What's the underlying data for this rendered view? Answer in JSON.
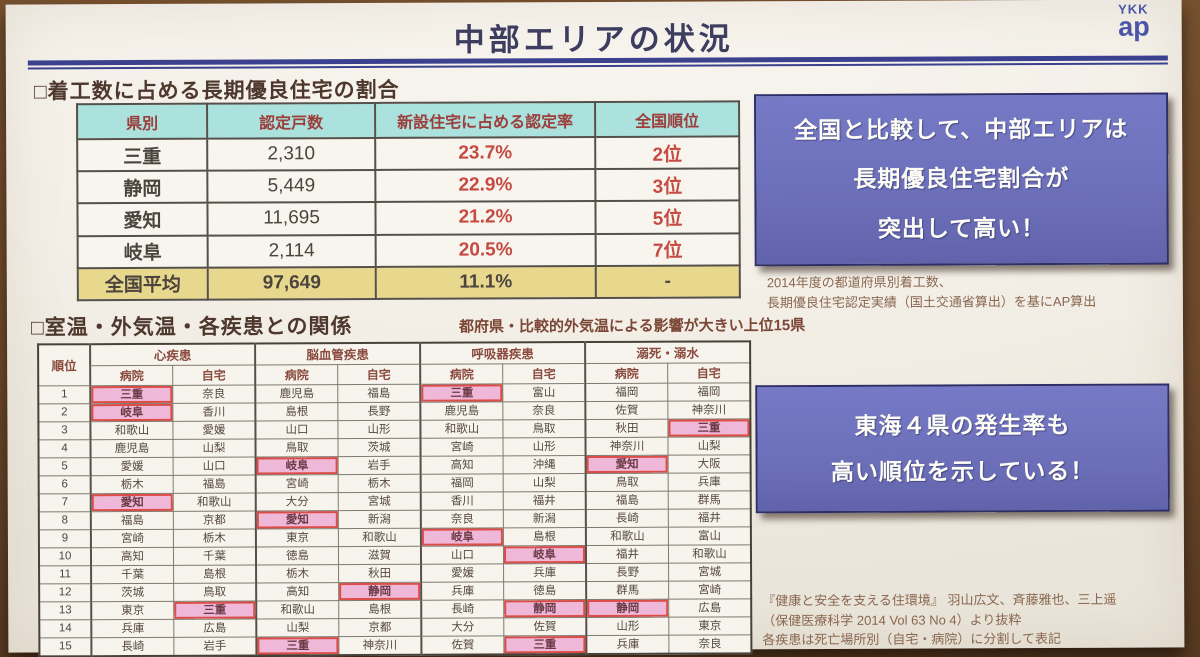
{
  "title": "中部エリアの状況",
  "logo": {
    "top": "YKK",
    "bottom": "ap"
  },
  "section1": {
    "heading": "□着工数に占める長期優良住宅の割合",
    "table": {
      "headers": [
        "県別",
        "認定戸数",
        "新設住宅に占める認定率",
        "全国順位"
      ],
      "rows": [
        {
          "pref": "三重",
          "units": "2,310",
          "rate": "23.7%",
          "rank": "2位",
          "total": false
        },
        {
          "pref": "静岡",
          "units": "5,449",
          "rate": "22.9%",
          "rank": "3位",
          "total": false
        },
        {
          "pref": "愛知",
          "units": "11,695",
          "rate": "21.2%",
          "rank": "5位",
          "total": false
        },
        {
          "pref": "岐阜",
          "units": "2,114",
          "rate": "20.5%",
          "rank": "7位",
          "total": false
        },
        {
          "pref": "全国平均",
          "units": "97,649",
          "rate": "11.1%",
          "rank": "-",
          "total": true
        }
      ]
    },
    "callout_lines": [
      "全国と比較して、中部エリアは",
      "長期優良住宅割合が",
      "突出して高い！"
    ],
    "footnote_lines": [
      "2014年度の都道府県別着工数、",
      "長期優良住宅認定実績（国土交通省算出）を基にAP算出"
    ]
  },
  "section2": {
    "heading": "□室温・外気温・各疾患との関係",
    "subtitle": "都府県・比較的外気温による影響が大きい上位15県",
    "table": {
      "rank_header": "順位",
      "groups": [
        "心疾患",
        "脳血管疾患",
        "呼吸器疾患",
        "溺死・溺水"
      ],
      "subheaders": [
        "病院",
        "自宅"
      ],
      "rows": [
        {
          "rank": "1",
          "cells": [
            "三重",
            "奈良",
            "鹿児島",
            "福島",
            "三重",
            "富山",
            "福岡",
            "福岡"
          ],
          "hl": [
            0,
            4
          ]
        },
        {
          "rank": "2",
          "cells": [
            "岐阜",
            "香川",
            "島根",
            "長野",
            "鹿児島",
            "奈良",
            "佐賀",
            "神奈川"
          ],
          "hl": [
            0
          ]
        },
        {
          "rank": "3",
          "cells": [
            "和歌山",
            "愛媛",
            "山口",
            "山形",
            "和歌山",
            "鳥取",
            "秋田",
            "三重"
          ],
          "hl": [
            7
          ]
        },
        {
          "rank": "4",
          "cells": [
            "鹿児島",
            "山梨",
            "鳥取",
            "茨城",
            "宮崎",
            "山形",
            "神奈川",
            "山梨"
          ],
          "hl": []
        },
        {
          "rank": "5",
          "cells": [
            "愛媛",
            "山口",
            "岐阜",
            "岩手",
            "高知",
            "沖縄",
            "愛知",
            "大阪"
          ],
          "hl": [
            2,
            6
          ]
        },
        {
          "rank": "6",
          "cells": [
            "栃木",
            "福島",
            "宮崎",
            "栃木",
            "福岡",
            "山梨",
            "鳥取",
            "兵庫"
          ],
          "hl": []
        },
        {
          "rank": "7",
          "cells": [
            "愛知",
            "和歌山",
            "大分",
            "宮城",
            "香川",
            "福井",
            "福島",
            "群馬"
          ],
          "hl": [
            0
          ]
        },
        {
          "rank": "8",
          "cells": [
            "福島",
            "京都",
            "愛知",
            "新潟",
            "奈良",
            "新潟",
            "長崎",
            "福井"
          ],
          "hl": [
            2
          ]
        },
        {
          "rank": "9",
          "cells": [
            "宮崎",
            "栃木",
            "東京",
            "和歌山",
            "岐阜",
            "島根",
            "和歌山",
            "富山"
          ],
          "hl": [
            4
          ]
        },
        {
          "rank": "10",
          "cells": [
            "高知",
            "千葉",
            "徳島",
            "滋賀",
            "山口",
            "岐阜",
            "福井",
            "和歌山"
          ],
          "hl": [
            5
          ]
        },
        {
          "rank": "11",
          "cells": [
            "千葉",
            "島根",
            "栃木",
            "秋田",
            "愛媛",
            "兵庫",
            "長野",
            "宮城"
          ],
          "hl": []
        },
        {
          "rank": "12",
          "cells": [
            "茨城",
            "鳥取",
            "高知",
            "静岡",
            "兵庫",
            "徳島",
            "群馬",
            "宮崎"
          ],
          "hl": [
            3
          ]
        },
        {
          "rank": "13",
          "cells": [
            "東京",
            "三重",
            "和歌山",
            "島根",
            "長崎",
            "静岡",
            "静岡",
            "広島"
          ],
          "hl": [
            1,
            5,
            6
          ]
        },
        {
          "rank": "14",
          "cells": [
            "兵庫",
            "広島",
            "山梨",
            "京都",
            "大分",
            "佐賀",
            "山形",
            "東京"
          ],
          "hl": []
        },
        {
          "rank": "15",
          "cells": [
            "長崎",
            "岩手",
            "三重",
            "神奈川",
            "佐賀",
            "三重",
            "兵庫",
            "奈良"
          ],
          "hl": [
            2,
            5
          ]
        }
      ]
    },
    "callout_lines": [
      "東海４県の発生率も",
      "高い順位を示している！"
    ],
    "footnote_lines": [
      "『健康と安全を支える住環境』 羽山広文、斉藤雅也、三上遥",
      "（保健医療科学 2014 Vol 63 No 4）より抜粋",
      "各疾患は死亡場所別（自宅・病院）に分割して表記"
    ]
  },
  "colors": {
    "callout_bg": "#6a6db6",
    "table1_header_bg": "#abe2dd",
    "total_row_bg": "#e8d88d",
    "highlight_bg": "#efb7d8",
    "highlight_border": "#dd4c46",
    "accent_red": "#c54a42",
    "rule_blue": "#3b418f"
  }
}
